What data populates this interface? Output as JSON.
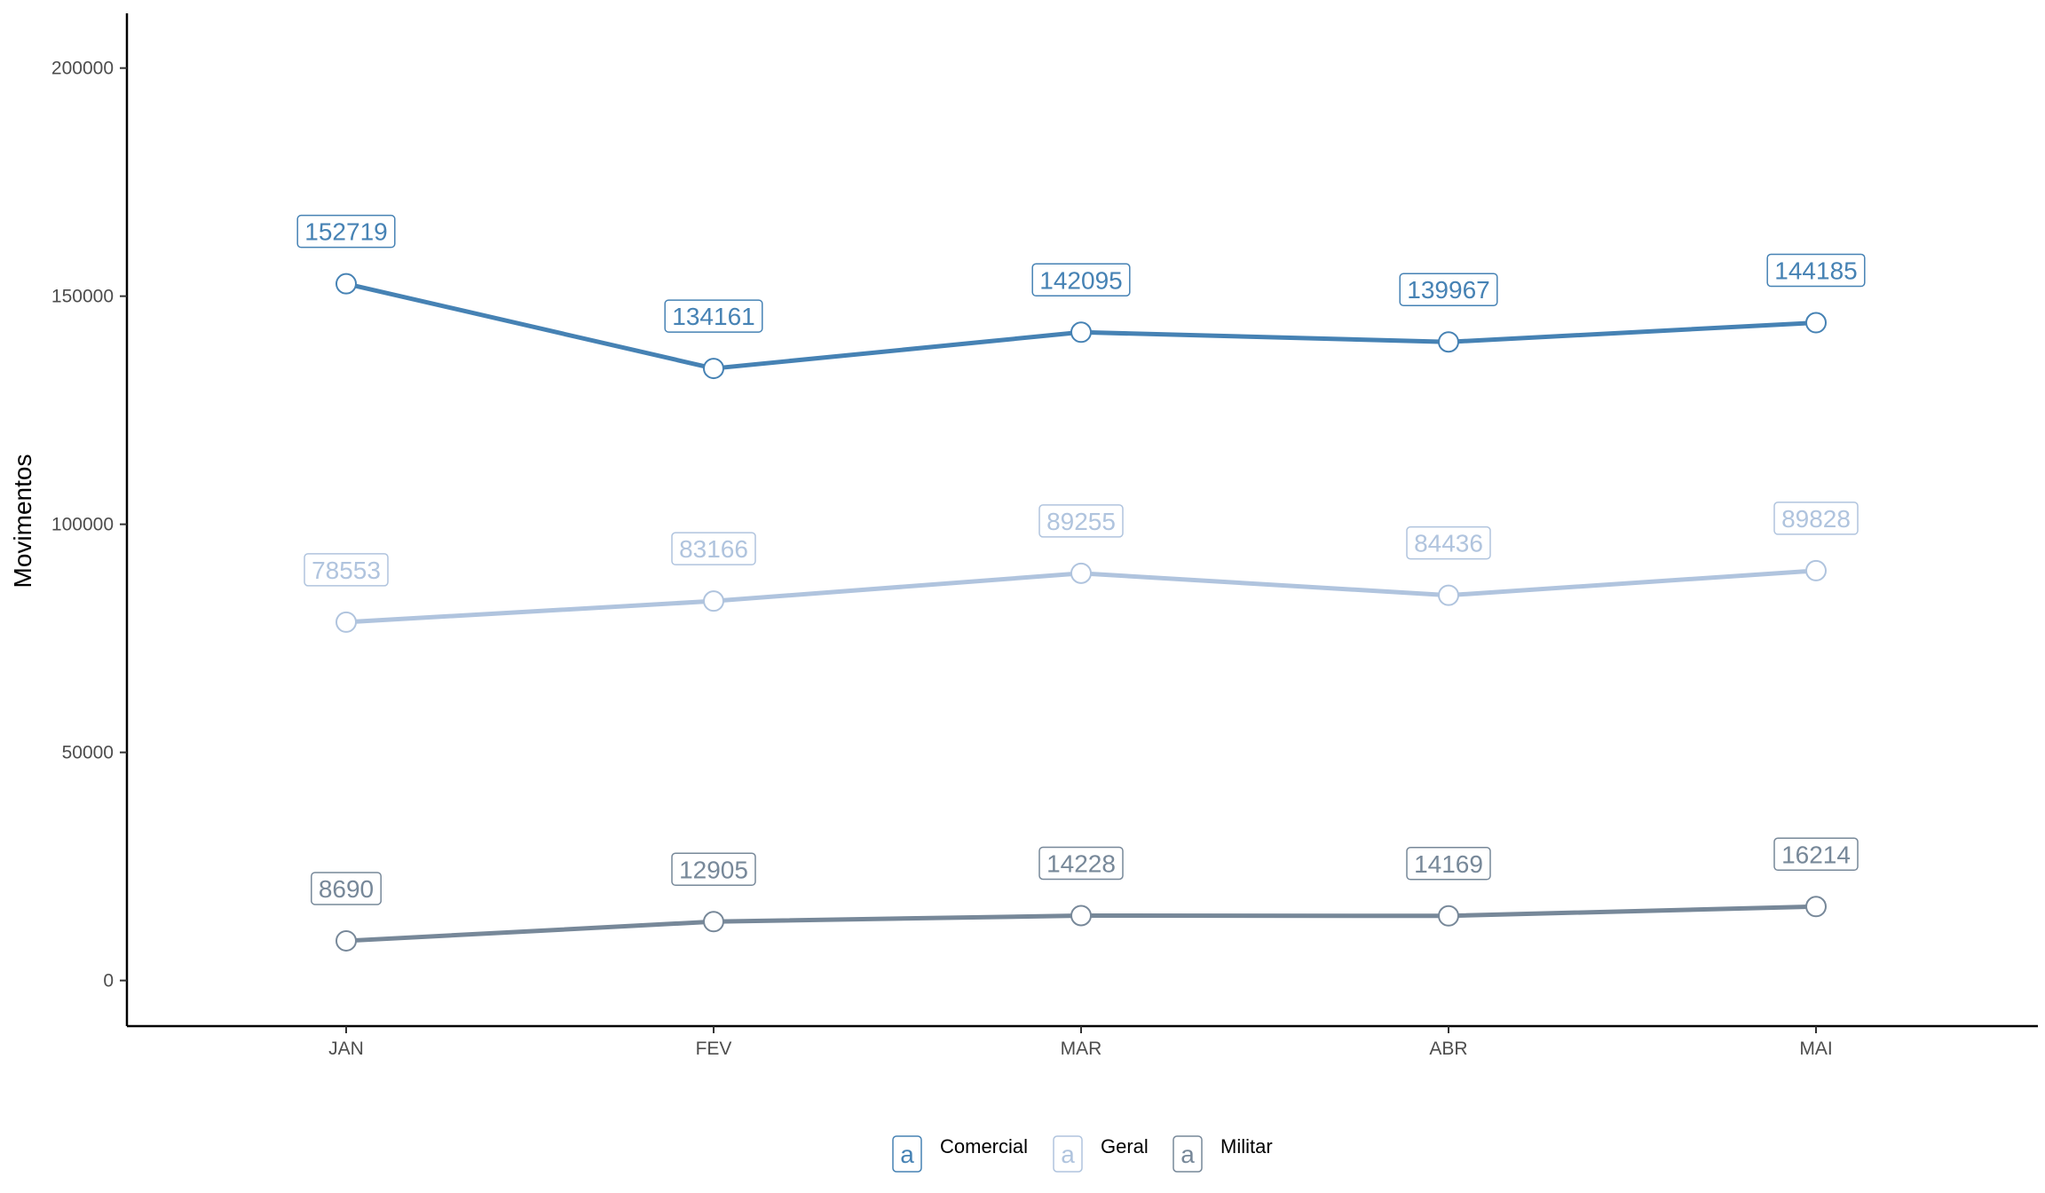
{
  "chart_data": {
    "type": "line",
    "title": "",
    "xlabel": "",
    "ylabel": "Movimentos",
    "categories": [
      "JAN",
      "FEV",
      "MAR",
      "ABR",
      "MAI"
    ],
    "ylim": [
      -10000,
      212000
    ],
    "yticks": [
      0,
      50000,
      100000,
      150000,
      200000
    ],
    "grid": false,
    "legend_position": "bottom",
    "series": [
      {
        "name": "Comercial",
        "color": "#4682b4",
        "values": [
          152719,
          134161,
          142095,
          139967,
          144185
        ]
      },
      {
        "name": "Geral",
        "color": "#b0c4de",
        "values": [
          78553,
          83166,
          89255,
          84436,
          89828
        ]
      },
      {
        "name": "Militar",
        "color": "#778899",
        "values": [
          8690,
          12905,
          14228,
          14169,
          16214
        ]
      }
    ],
    "legend_key_glyph": "a"
  }
}
